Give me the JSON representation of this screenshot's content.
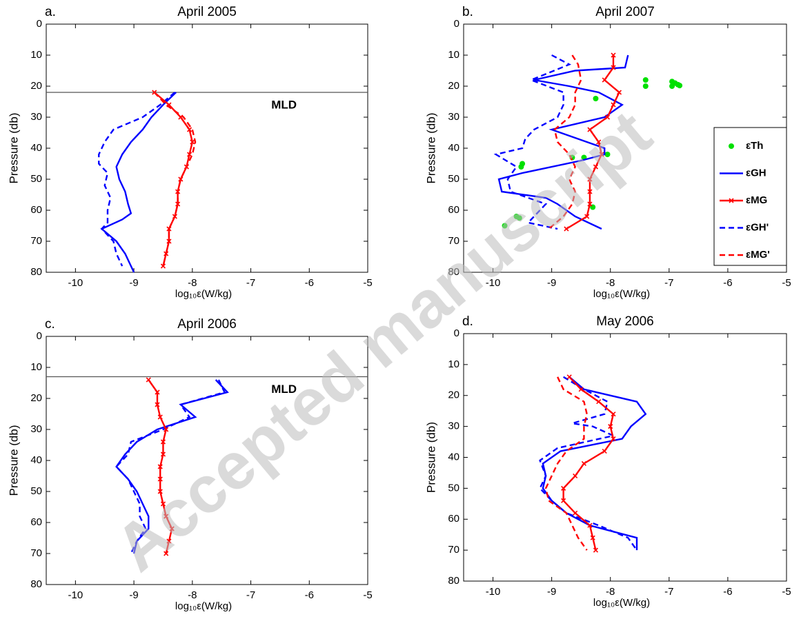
{
  "watermark": "Accepted manuscript",
  "chart_data": [
    {
      "type": "line",
      "panel_label": "a.",
      "title": "April 2005",
      "xlabel": "log₁₀ε(W/kg)",
      "ylabel": "Pressure (db)",
      "xlim": [
        -10.5,
        -5
      ],
      "xticks": [
        -10,
        -9,
        -8,
        -7,
        -6,
        -5
      ],
      "ylim": [
        80,
        0
      ],
      "yticks": [
        0,
        10,
        20,
        30,
        40,
        50,
        60,
        70,
        80
      ],
      "annotations": [
        {
          "text": "MLD",
          "y": 22
        }
      ],
      "series": [
        {
          "color": "#0000ff",
          "linestyle": "solid",
          "x": [
            -8.28,
            -8.5,
            -8.7,
            -8.85,
            -9.05,
            -9.2,
            -9.3,
            -9.25,
            -9.15,
            -9.1,
            -9.05,
            -9.2,
            -9.55,
            -9.3,
            -9.15,
            -9.05,
            -9.0
          ],
          "y": [
            22,
            26,
            30,
            34,
            38,
            42,
            46,
            50,
            54,
            58,
            61,
            63,
            66,
            70,
            74,
            78,
            80
          ]
        },
        {
          "color": "#0000ff",
          "linestyle": "dashed",
          "x": [
            -8.3,
            -8.55,
            -8.85,
            -9.35,
            -9.5,
            -9.6,
            -9.6,
            -9.45,
            -9.5,
            -9.4,
            -9.45,
            -9.45,
            -9.55,
            -9.35,
            -9.3,
            -9.2
          ],
          "y": [
            22,
            26,
            30,
            34,
            38,
            42,
            45,
            48,
            52,
            56,
            60,
            64,
            66,
            70,
            74,
            78
          ]
        },
        {
          "color": "#ff0000",
          "linestyle": "solid",
          "marker": "x",
          "x": [
            -8.65,
            -8.4,
            -8.2,
            -8.05,
            -8.0,
            -8.05,
            -8.1,
            -8.2,
            -8.25,
            -8.25,
            -8.3,
            -8.4,
            -8.4,
            -8.45,
            -8.5
          ],
          "y": [
            22,
            26,
            30,
            34,
            38,
            42,
            46,
            50,
            54,
            58,
            62,
            66,
            70,
            74,
            78
          ]
        },
        {
          "color": "#ff0000",
          "linestyle": "dashed",
          "x": [
            -8.65,
            -8.45,
            -8.15,
            -8.0,
            -7.95,
            -8.0,
            -8.1,
            -8.2,
            -8.25,
            -8.25,
            -8.3,
            -8.4,
            -8.4,
            -8.45,
            -8.5
          ],
          "y": [
            22,
            26,
            30,
            34,
            38,
            42,
            46,
            50,
            54,
            58,
            62,
            66,
            70,
            74,
            78
          ]
        }
      ]
    },
    {
      "type": "line",
      "panel_label": "b.",
      "title": "April 2007",
      "xlabel": "log₁₀ε(W/kg)",
      "ylabel": "Pressure (db)",
      "xlim": [
        -10.5,
        -5
      ],
      "xticks": [
        -10,
        -9,
        -8,
        -7,
        -6,
        -5
      ],
      "ylim": [
        80,
        0
      ],
      "yticks": [
        0,
        10,
        20,
        30,
        40,
        50,
        60,
        70,
        80
      ],
      "legend": "right",
      "series": [
        {
          "name": "εTh",
          "color": "#00e000",
          "linestyle": "none",
          "marker": "dot",
          "x": [
            -7.4,
            -7.4,
            -6.95,
            -6.95,
            -6.9,
            -6.85,
            -6.82,
            -8.25,
            -8.05,
            -8.45,
            -8.65,
            -9.5,
            -9.52,
            -8.3,
            -9.6,
            -9.55,
            -9.8
          ],
          "y": [
            18,
            20,
            18.5,
            20,
            19,
            19.5,
            19.8,
            24,
            42,
            43,
            43,
            45,
            46,
            59,
            62,
            62.5,
            65
          ]
        },
        {
          "name": "εGH",
          "color": "#0000ff",
          "linestyle": "solid",
          "x": [
            -7.7,
            -7.75,
            -8.6,
            -9.3,
            -8.7,
            -8.2,
            -7.8,
            -8.1,
            -9.0,
            -8.7,
            -8.4,
            -8.1,
            -8.1,
            -8.5,
            -9.5,
            -9.9,
            -9.85,
            -9.1,
            -8.9,
            -8.6,
            -8.15
          ],
          "y": [
            10,
            14,
            15,
            18,
            20,
            22,
            26,
            30,
            34,
            36,
            38,
            40,
            42,
            44,
            48,
            50,
            54,
            56,
            58,
            62,
            66
          ]
        },
        {
          "name": "εMG",
          "color": "#ff0000",
          "linestyle": "solid",
          "marker": "x",
          "x": [
            -7.95,
            -7.95,
            -8.1,
            -7.85,
            -7.95,
            -8.05,
            -8.35,
            -8.2,
            -8.15,
            -8.25,
            -8.35,
            -8.35,
            -8.35,
            -8.4,
            -8.75
          ],
          "y": [
            10,
            14,
            18,
            22,
            26,
            30,
            34,
            38,
            42,
            46,
            50,
            54,
            58,
            62,
            66
          ]
        },
        {
          "name": "εGH'",
          "color": "#0000ff",
          "linestyle": "dashed",
          "x": [
            -9.0,
            -8.7,
            -9.35,
            -8.8,
            -8.8,
            -8.9,
            -9.3,
            -9.45,
            -9.5,
            -9.95,
            -9.6,
            -9.75,
            -9.7,
            -9.1,
            -9.3,
            -9.4,
            -8.9
          ],
          "y": [
            10,
            13,
            18,
            22,
            26,
            30,
            34,
            37,
            40,
            42,
            46,
            50,
            54,
            58,
            62,
            64,
            66
          ]
        },
        {
          "name": "εMG'",
          "color": "#ff0000",
          "linestyle": "dashed",
          "x": [
            -8.65,
            -8.55,
            -8.5,
            -8.6,
            -8.6,
            -8.7,
            -8.95,
            -8.9,
            -8.7,
            -8.6,
            -8.7,
            -8.6,
            -8.65,
            -8.8,
            -9.05
          ],
          "y": [
            10,
            13,
            18,
            22,
            26,
            30,
            34,
            38,
            42,
            46,
            50,
            54,
            58,
            62,
            66
          ]
        }
      ]
    },
    {
      "type": "line",
      "panel_label": "c.",
      "title": "April 2006",
      "xlabel": "log₁₀ε(W/kg)",
      "ylabel": "Pressure (db)",
      "xlim": [
        -10.5,
        -5
      ],
      "xticks": [
        -10,
        -9,
        -8,
        -7,
        -6,
        -5
      ],
      "ylim": [
        80,
        0
      ],
      "yticks": [
        0,
        10,
        20,
        30,
        40,
        50,
        60,
        70,
        80
      ],
      "annotations": [
        {
          "text": "MLD",
          "y": 13
        }
      ],
      "series": [
        {
          "color": "#0000ff",
          "linestyle": "solid",
          "x": [
            -7.6,
            -7.4,
            -8.2,
            -7.95,
            -8.6,
            -8.95,
            -9.15,
            -9.3,
            -9.1,
            -8.95,
            -8.85,
            -8.75,
            -8.75,
            -8.95,
            -9.0
          ],
          "y": [
            14,
            18,
            22,
            26,
            30,
            34,
            38,
            42,
            46,
            50,
            54,
            58,
            62,
            66,
            70
          ]
        },
        {
          "color": "#0000ff",
          "linestyle": "dashed",
          "x": [
            -7.55,
            -7.45,
            -8.2,
            -8.05,
            -8.5,
            -9.05,
            -9.1,
            -9.3,
            -9.1,
            -9.0,
            -8.9,
            -8.9,
            -8.8,
            -8.95,
            -9.05
          ],
          "y": [
            14,
            18,
            22,
            26,
            30,
            34,
            38,
            42,
            46,
            50,
            54,
            58,
            62,
            66,
            70
          ]
        },
        {
          "color": "#ff0000",
          "linestyle": "solid",
          "marker": "x",
          "x": [
            -8.75,
            -8.6,
            -8.6,
            -8.55,
            -8.45,
            -8.5,
            -8.5,
            -8.55,
            -8.55,
            -8.55,
            -8.5,
            -8.45,
            -8.35,
            -8.4,
            -8.45
          ],
          "y": [
            14,
            18,
            22,
            26,
            30,
            34,
            38,
            42,
            46,
            50,
            54,
            58,
            62,
            66,
            70
          ]
        }
      ]
    },
    {
      "type": "line",
      "panel_label": "d.",
      "title": "May 2006",
      "xlabel": "log₁₀ε(W/kg)",
      "ylabel": "Pressure (db)",
      "xlim": [
        -10.5,
        -5
      ],
      "xticks": [
        -10,
        -9,
        -8,
        -7,
        -6,
        -5
      ],
      "ylim": [
        80,
        0
      ],
      "yticks": [
        0,
        10,
        20,
        30,
        40,
        50,
        60,
        70,
        80
      ],
      "series": [
        {
          "color": "#0000ff",
          "linestyle": "solid",
          "x": [
            -8.7,
            -8.45,
            -7.55,
            -7.4,
            -7.65,
            -7.8,
            -8.85,
            -9.15,
            -9.1,
            -9.15,
            -9.0,
            -8.75,
            -8.35,
            -7.55,
            -7.55
          ],
          "y": [
            14,
            18,
            22,
            26,
            30,
            34,
            38,
            42,
            46,
            50,
            54,
            58,
            62,
            66,
            70
          ]
        },
        {
          "color": "#0000ff",
          "linestyle": "dashed",
          "x": [
            -8.8,
            -8.45,
            -8.05,
            -8.1,
            -8.65,
            -8.3,
            -7.95,
            -8.9,
            -9.2,
            -9.1,
            -9.2,
            -9.0,
            -8.75,
            -8.2,
            -7.7,
            -7.55
          ],
          "y": [
            14,
            18,
            22,
            26,
            29,
            30,
            33,
            37,
            41,
            46,
            50,
            54,
            58,
            62,
            66,
            70
          ]
        },
        {
          "color": "#ff0000",
          "linestyle": "solid",
          "marker": "x",
          "x": [
            -8.7,
            -8.5,
            -8.2,
            -7.95,
            -8.0,
            -7.95,
            -8.1,
            -8.45,
            -8.6,
            -8.8,
            -8.8,
            -8.6,
            -8.35,
            -8.3,
            -8.25
          ],
          "y": [
            14,
            18,
            22,
            26,
            30,
            34,
            38,
            42,
            46,
            50,
            54,
            58,
            62,
            66,
            70
          ]
        },
        {
          "color": "#ff0000",
          "linestyle": "dashed",
          "x": [
            -8.9,
            -8.8,
            -8.45,
            -8.4,
            -8.45,
            -8.45,
            -8.75,
            -8.9,
            -9.0,
            -9.1,
            -9.05,
            -8.75,
            -8.65,
            -8.55,
            -8.4
          ],
          "y": [
            14,
            18,
            22,
            26,
            30,
            34,
            38,
            42,
            46,
            50,
            54,
            58,
            62,
            66,
            70
          ]
        }
      ]
    }
  ]
}
